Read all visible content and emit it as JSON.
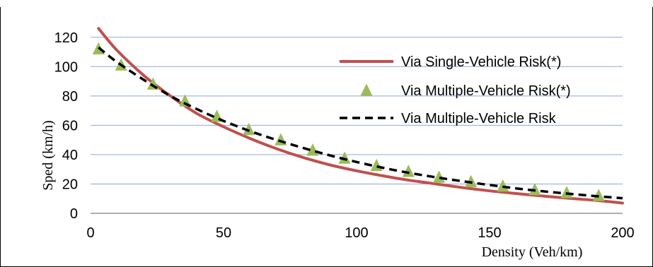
{
  "chart_data": {
    "type": "line",
    "xlabel": "Density (Veh/km)",
    "ylabel": "Sped (km/h)",
    "xlim": [
      0,
      200
    ],
    "ylim": [
      0,
      130
    ],
    "x_ticks": [
      "0",
      "50",
      "100",
      "150",
      "200"
    ],
    "y_ticks": [
      "0",
      "20",
      "40",
      "60",
      "80",
      "100",
      "120"
    ],
    "grid": "horizontal",
    "legend_position": "right",
    "series": [
      {
        "name": "Via Single-Vehicle Risk(*)",
        "style": "solid-line",
        "color": "#C0504D",
        "x": [
          3,
          10,
          20,
          30,
          40,
          50,
          60,
          70,
          80,
          90,
          100,
          110,
          120,
          130,
          140,
          150,
          160,
          170,
          180,
          190,
          200
        ],
        "y": [
          126,
          111,
          94,
          80,
          68,
          59,
          51,
          44,
          38,
          33,
          29,
          25.5,
          22.5,
          20,
          17.5,
          15.3,
          13.5,
          11.8,
          10.2,
          8.8,
          7
        ]
      },
      {
        "name": "Via Multiple-Vehicle Risk(*)",
        "style": "triangle-markers",
        "color": "#9BBB59",
        "x": [
          3,
          11.5,
          23.5,
          35.5,
          47.5,
          59.5,
          71.5,
          83.5,
          95.5,
          107.5,
          119.5,
          131,
          143,
          155,
          167,
          179,
          191
        ],
        "y": [
          112,
          101,
          88,
          76.5,
          66,
          57,
          50,
          43,
          37.5,
          32.5,
          28.5,
          24.5,
          21.5,
          18.5,
          16,
          14,
          12
        ]
      },
      {
        "name": "Via Multiple-Vehicle Risk",
        "style": "dashed-line",
        "color": "#000000",
        "x": [
          3,
          10,
          20,
          30,
          40,
          50,
          60,
          70,
          80,
          90,
          100,
          110,
          120,
          130,
          140,
          150,
          160,
          170,
          180,
          190,
          200
        ],
        "y": [
          113,
          103,
          91,
          80,
          71,
          63,
          56,
          50,
          44.5,
          39.5,
          35,
          31,
          27.5,
          24.5,
          21.8,
          19.3,
          17,
          15,
          13.3,
          11.7,
          10.3
        ]
      }
    ]
  }
}
